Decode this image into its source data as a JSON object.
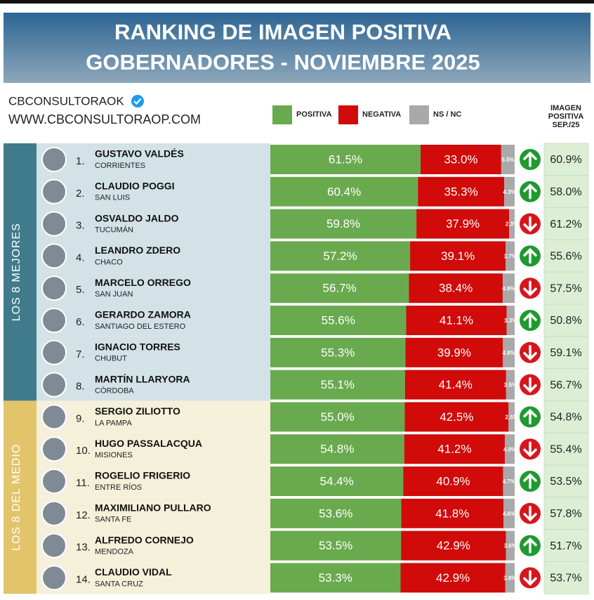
{
  "chart_data": {
    "type": "stacked-bar-table",
    "title": [
      "RANKING DE IMAGEN POSITIVA",
      "GOBERNADORES - NOVIEMBRE 2025"
    ],
    "brand": "CBCONSULTORAOK",
    "website": "WWW.CBCONSULTORAOP.COM",
    "previous_header": [
      "IMAGEN",
      "POSITIVA",
      "SEP./25"
    ],
    "xlim": [
      0,
      100
    ],
    "series": [
      {
        "name": "POSITIVA",
        "color": "#6aaa4f"
      },
      {
        "name": "NEGATIVA",
        "color": "#d10a0a"
      },
      {
        "name": "NS / NC",
        "color": "#a9a9a9"
      }
    ],
    "groups": [
      {
        "label": "LOS 8 MEJORES",
        "color": "#3f7b8b",
        "background": "#d3e2e7",
        "rows": [
          {
            "rank": "1.",
            "name": "GUSTAVO VALDÉS",
            "province": "CORRIENTES",
            "values": [
              {
                "value": 61.5,
                "label": "61.5%"
              },
              {
                "value": 33,
                "label": "33.0%"
              },
              {
                "value": 5.5,
                "label": "5.5%"
              }
            ],
            "trend": "up",
            "previous": {
              "value": 60.9,
              "label": "60.9%"
            }
          },
          {
            "rank": "2.",
            "name": "CLAUDIO POGGI",
            "province": "SAN LUIS",
            "values": [
              {
                "value": 60.4,
                "label": "60.4%"
              },
              {
                "value": 35.3,
                "label": "35.3%"
              },
              {
                "value": 4.3,
                "label": "4.3%"
              }
            ],
            "trend": "up",
            "previous": {
              "value": 58,
              "label": "58.0%"
            }
          },
          {
            "rank": "3.",
            "name": "OSVALDO JALDO",
            "province": "TUCUMÁN",
            "values": [
              {
                "value": 59.8,
                "label": "59.8%"
              },
              {
                "value": 37.9,
                "label": "37.9%"
              },
              {
                "value": 2.3,
                "label": "2.3%"
              }
            ],
            "trend": "down",
            "previous": {
              "value": 61.2,
              "label": "61.2%"
            }
          },
          {
            "rank": "4.",
            "name": "LEANDRO ZDERO",
            "province": "CHACO",
            "values": [
              {
                "value": 57.2,
                "label": "57.2%"
              },
              {
                "value": 39.1,
                "label": "39.1%"
              },
              {
                "value": 3.7,
                "label": "3.7%"
              }
            ],
            "trend": "up",
            "previous": {
              "value": 55.6,
              "label": "55.6%"
            }
          },
          {
            "rank": "5.",
            "name": "MARCELO ORREGO",
            "province": "SAN JUAN",
            "values": [
              {
                "value": 56.7,
                "label": "56.7%"
              },
              {
                "value": 38.4,
                "label": "38.4%"
              },
              {
                "value": 4.9,
                "label": "4.9%"
              }
            ],
            "trend": "down",
            "previous": {
              "value": 57.5,
              "label": "57.5%"
            }
          },
          {
            "rank": "6.",
            "name": "GERARDO ZAMORA",
            "province": "SANTIAGO DEL ESTERO",
            "values": [
              {
                "value": 55.6,
                "label": "55.6%"
              },
              {
                "value": 41.1,
                "label": "41.1%"
              },
              {
                "value": 3.3,
                "label": "3.3%"
              }
            ],
            "trend": "up",
            "previous": {
              "value": 50.8,
              "label": "50.8%"
            }
          },
          {
            "rank": "7.",
            "name": "IGNACIO TORRES",
            "province": "CHUBUT",
            "values": [
              {
                "value": 55.3,
                "label": "55.3%"
              },
              {
                "value": 39.9,
                "label": "39.9%"
              },
              {
                "value": 4.8,
                "label": "4.8%"
              }
            ],
            "trend": "down",
            "previous": {
              "value": 59.1,
              "label": "59.1%"
            }
          },
          {
            "rank": "8.",
            "name": "MARTÍN LLARYORA",
            "province": "CÓRDOBA",
            "values": [
              {
                "value": 55.1,
                "label": "55.1%"
              },
              {
                "value": 41.4,
                "label": "41.4%"
              },
              {
                "value": 3.5,
                "label": "3.5%"
              }
            ],
            "trend": "down",
            "previous": {
              "value": 56.7,
              "label": "56.7%"
            }
          }
        ]
      },
      {
        "label": "LOS 8 DEL MEDIO",
        "color": "#e2c46b",
        "background": "#f5f0da",
        "rows": [
          {
            "rank": "9.",
            "name": "SERGIO ZILIOTTO",
            "province": "LA PAMPA",
            "values": [
              {
                "value": 55,
                "label": "55.0%"
              },
              {
                "value": 42.5,
                "label": "42.5%"
              },
              {
                "value": 2.5,
                "label": "2.5%"
              }
            ],
            "trend": "up",
            "previous": {
              "value": 54.8,
              "label": "54.8%"
            }
          },
          {
            "rank": "10.",
            "name": "HUGO PASSALACQUA",
            "province": "MISIONES",
            "values": [
              {
                "value": 54.8,
                "label": "54.8%"
              },
              {
                "value": 41.2,
                "label": "41.2%"
              },
              {
                "value": 4,
                "label": "4.0%"
              }
            ],
            "trend": "down",
            "previous": {
              "value": 55.4,
              "label": "55.4%"
            }
          },
          {
            "rank": "11.",
            "name": "ROGELIO FRIGERIO",
            "province": "ENTRE RÍOS",
            "values": [
              {
                "value": 54.4,
                "label": "54.4%"
              },
              {
                "value": 40.9,
                "label": "40.9%"
              },
              {
                "value": 4.7,
                "label": "4.7%"
              }
            ],
            "trend": "up",
            "previous": {
              "value": 53.5,
              "label": "53.5%"
            }
          },
          {
            "rank": "12.",
            "name": "MAXIMILIANO PULLARO",
            "province": "SANTA FE",
            "values": [
              {
                "value": 53.6,
                "label": "53.6%"
              },
              {
                "value": 41.8,
                "label": "41.8%"
              },
              {
                "value": 4.6,
                "label": "4.6%"
              }
            ],
            "trend": "down",
            "previous": {
              "value": 57.8,
              "label": "57.8%"
            }
          },
          {
            "rank": "13.",
            "name": "ALFREDO CORNEJO",
            "province": "MENDOZA",
            "values": [
              {
                "value": 53.5,
                "label": "53.5%"
              },
              {
                "value": 42.9,
                "label": "42.9%"
              },
              {
                "value": 3.6,
                "label": "3.6%"
              }
            ],
            "trend": "up",
            "previous": {
              "value": 51.7,
              "label": "51.7%"
            }
          },
          {
            "rank": "14.",
            "name": "CLAUDIO VIDAL",
            "province": "SANTA CRUZ",
            "values": [
              {
                "value": 53.3,
                "label": "53.3%"
              },
              {
                "value": 42.9,
                "label": "42.9%"
              },
              {
                "value": 3.8,
                "label": "3.8%"
              }
            ],
            "trend": "down",
            "previous": {
              "value": 53.7,
              "label": "53.7%"
            }
          }
        ]
      }
    ]
  }
}
